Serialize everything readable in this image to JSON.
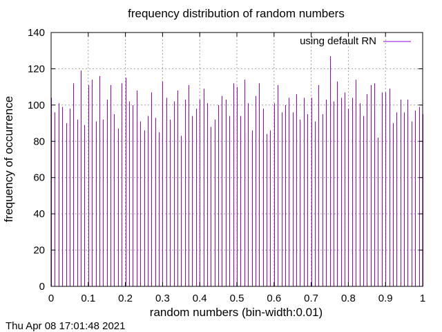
{
  "chart_data": {
    "type": "bar",
    "title": "frequency distribution of random numbers",
    "xlabel": "random numbers (bin-width:0.01)",
    "ylabel": "frequency of occurrence",
    "xlim": [
      0,
      1
    ],
    "ylim": [
      0,
      140
    ],
    "xticks": [
      "0",
      "0.1",
      "0.2",
      "0.3",
      "0.4",
      "0.5",
      "0.6",
      "0.7",
      "0.8",
      "0.9",
      "1"
    ],
    "yticks": [
      "0",
      "20",
      "40",
      "60",
      "80",
      "100",
      "120",
      "140"
    ],
    "grid": true,
    "legend_position": "top-right",
    "series": [
      {
        "name": "using default RN",
        "color": "#9400d3",
        "x": [
          0.0,
          0.01,
          0.02,
          0.03,
          0.04,
          0.05,
          0.06,
          0.07,
          0.08,
          0.09,
          0.1,
          0.11,
          0.12,
          0.13,
          0.14,
          0.15,
          0.16,
          0.17,
          0.18,
          0.19,
          0.2,
          0.21,
          0.22,
          0.23,
          0.24,
          0.25,
          0.26,
          0.27,
          0.28,
          0.29,
          0.3,
          0.31,
          0.32,
          0.33,
          0.34,
          0.35,
          0.36,
          0.37,
          0.38,
          0.39,
          0.4,
          0.41,
          0.42,
          0.43,
          0.44,
          0.45,
          0.46,
          0.47,
          0.48,
          0.49,
          0.5,
          0.51,
          0.52,
          0.53,
          0.54,
          0.55,
          0.56,
          0.57,
          0.58,
          0.59,
          0.6,
          0.61,
          0.62,
          0.63,
          0.64,
          0.65,
          0.66,
          0.67,
          0.68,
          0.69,
          0.7,
          0.71,
          0.72,
          0.73,
          0.74,
          0.75,
          0.76,
          0.77,
          0.78,
          0.79,
          0.8,
          0.81,
          0.82,
          0.83,
          0.84,
          0.85,
          0.86,
          0.87,
          0.88,
          0.89,
          0.9,
          0.91,
          0.92,
          0.93,
          0.94,
          0.95,
          0.96,
          0.97,
          0.98,
          0.99,
          1.0
        ],
        "values": [
          104,
          96,
          101,
          99,
          90,
          98,
          112,
          92,
          119,
          89,
          111,
          114,
          91,
          116,
          92,
          103,
          111,
          95,
          87,
          112,
          115,
          102,
          100,
          108,
          91,
          86,
          94,
          107,
          93,
          85,
          113,
          104,
          92,
          102,
          108,
          83,
          103,
          111,
          94,
          98,
          103,
          109,
          101,
          88,
          92,
          100,
          105,
          103,
          94,
          112,
          110,
          94,
          114,
          101,
          86,
          105,
          112,
          98,
          84,
          86,
          101,
          111,
          96,
          100,
          104,
          96,
          106,
          92,
          104,
          95,
          104,
          91,
          111,
          95,
          103,
          127,
          102,
          113,
          104,
          107,
          98,
          104,
          114,
          101,
          94,
          106,
          111,
          112,
          82,
          107,
          107,
          109,
          90,
          96,
          103,
          96,
          103,
          91,
          97,
          99,
          95
        ]
      }
    ]
  },
  "footer": {
    "timestamp": "Thu Apr 08 17:01:48 2021"
  }
}
